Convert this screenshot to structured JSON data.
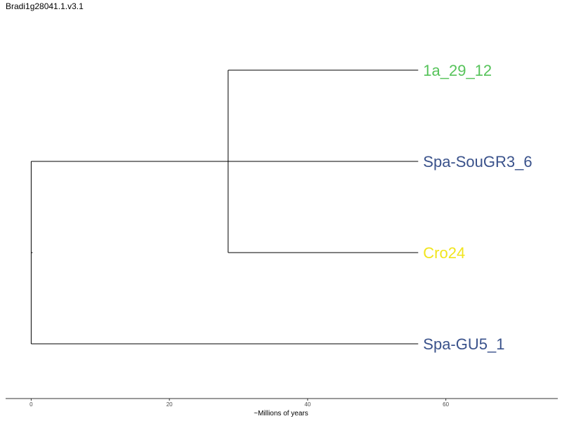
{
  "title": "Bradi1g28041.1.v3.1",
  "chart_data": {
    "type": "dendrogram",
    "xlabel": "~Millions of years",
    "xlim": [
      -3.7,
      76.2
    ],
    "xticks": [
      0,
      20,
      40,
      60
    ],
    "leaves": [
      {
        "label": "1a_29_12",
        "color": "#56c35a"
      },
      {
        "label": "Spa-SouGR3_6",
        "color": "#3a528b"
      },
      {
        "label": "Cro24",
        "color": "#f1e51d"
      },
      {
        "label": "Spa-GU5_1",
        "color": "#3a528b"
      }
    ],
    "leaf_x": 56.0,
    "clades": [
      {
        "name": "inner",
        "x": 28.5,
        "children": [
          "1a_29_12",
          "Cro24"
        ]
      },
      {
        "name": "root",
        "x": 0,
        "children": [
          "Spa-SouGR3_6",
          "Spa-GU5_1"
        ]
      }
    ],
    "line_color": "#000000"
  }
}
